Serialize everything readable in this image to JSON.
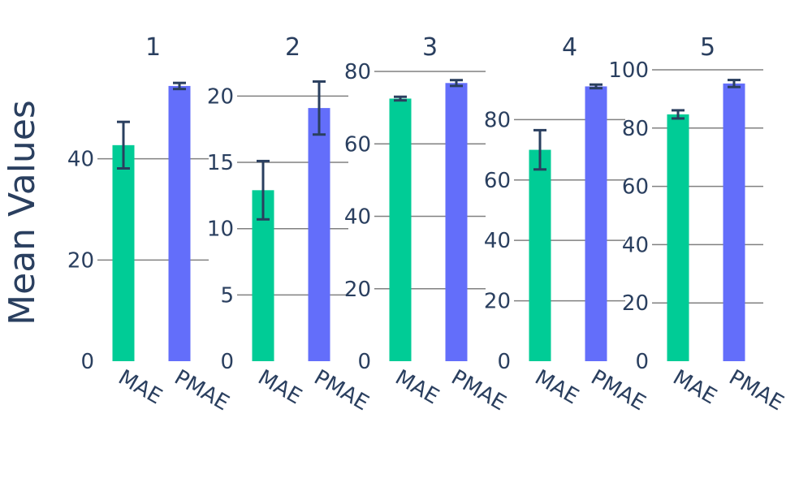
{
  "colors": {
    "MAE": "#00CC96",
    "PMAE": "#636EFA",
    "text": "#2A3F5F",
    "grid": "#808080",
    "error_bar": "#2A3F5F"
  },
  "chart_data": {
    "type": "bar",
    "ylabel": "Mean Values",
    "categories": [
      "MAE",
      "PMAE"
    ],
    "panels": [
      {
        "title": "1",
        "ylim": [
          0,
          60
        ],
        "yticks": [
          0,
          20,
          40
        ],
        "values": [
          42.7,
          54.4
        ],
        "errors": [
          4.6,
          0.6
        ]
      },
      {
        "title": "2",
        "ylim": [
          0,
          21.8
        ],
        "yticks": [
          0,
          5,
          10,
          15,
          20
        ],
        "values": [
          12.9,
          19.1
        ],
        "errors": [
          2.2,
          2.0
        ]
      },
      {
        "title": "3",
        "ylim": [
          0,
          80
        ],
        "yticks": [
          0,
          20,
          40,
          60,
          80
        ],
        "values": [
          72.5,
          76.8
        ],
        "errors": [
          0.5,
          0.8
        ]
      },
      {
        "title": "4",
        "ylim": [
          0,
          93
        ],
        "yticks": [
          0,
          20,
          40,
          60,
          80
        ],
        "values": [
          70.0,
          91.0
        ],
        "errors": [
          6.5,
          0.6
        ]
      },
      {
        "title": "5",
        "ylim": [
          0,
          100
        ],
        "yticks": [
          0,
          20,
          40,
          60,
          80,
          100
        ],
        "values": [
          84.7,
          95.3
        ],
        "errors": [
          1.4,
          1.2
        ]
      }
    ]
  }
}
